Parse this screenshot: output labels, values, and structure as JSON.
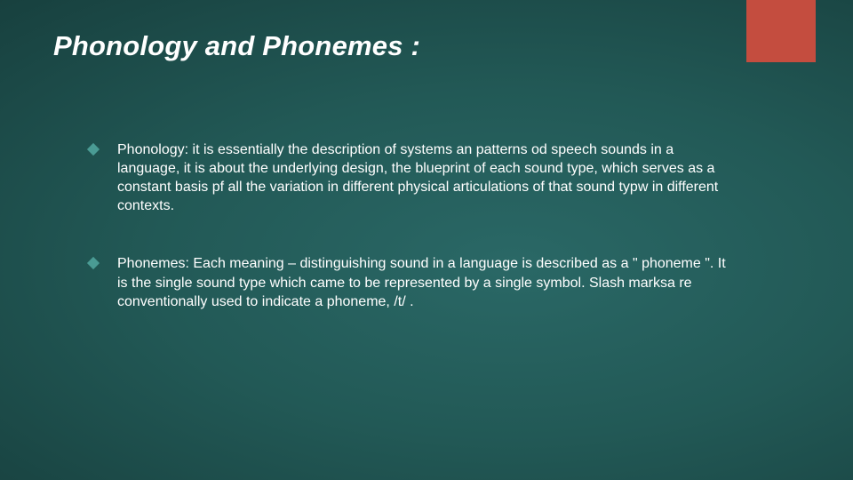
{
  "slide": {
    "title": "Phonology and Phonemes :",
    "background_gradient": {
      "center_color": "#2a6866",
      "edge_color": "#0d2826"
    },
    "accent_bar_color": "#c44d3f",
    "bullet_color": "#4a9b94",
    "text_color": "#ffffff",
    "title_fontsize": 31,
    "body_fontsize": 16,
    "bullets": [
      {
        "text": "Phonology: it is essentially the description of systems an patterns od speech sounds in a language, it is about the underlying design, the blueprint of each sound type, which serves as a constant basis pf all the variation in different physical articulations of that sound typw in different contexts."
      },
      {
        "text": "Phonemes: Each meaning – distinguishing sound in a language is described as a \" phoneme \". It is the single sound type which came to be represented by a single symbol. Slash marksa re conventionally used to indicate a phoneme, /t/ ."
      }
    ]
  }
}
